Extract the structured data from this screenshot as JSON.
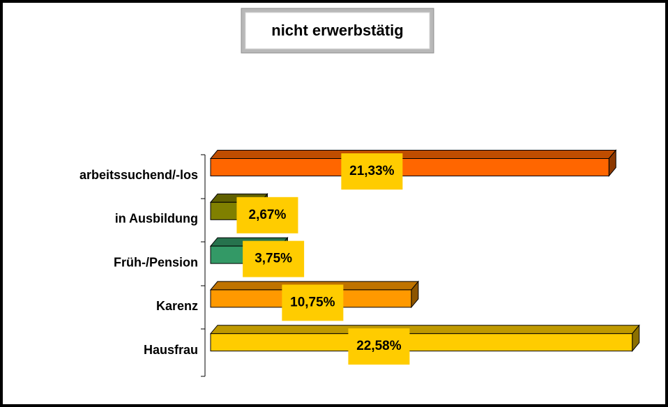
{
  "chart_data": {
    "type": "bar3d_horizontal",
    "title": "nicht erwerbstätig",
    "categories": [
      "arbeitssuchend/-los",
      "in Ausbildung",
      "Früh-/Pension",
      "Karenz",
      "Hausfrau"
    ],
    "values": [
      21.33,
      2.67,
      3.75,
      10.75,
      22.58
    ],
    "value_labels": [
      "21,33%",
      "2,67%",
      "3,75%",
      "10,75%",
      "22,58%"
    ],
    "colors": [
      "#ff6600",
      "#808000",
      "#339966",
      "#ff9900",
      "#ffcc00"
    ],
    "label_box_color": "#ffcc00",
    "xlim": [
      0,
      23
    ]
  }
}
